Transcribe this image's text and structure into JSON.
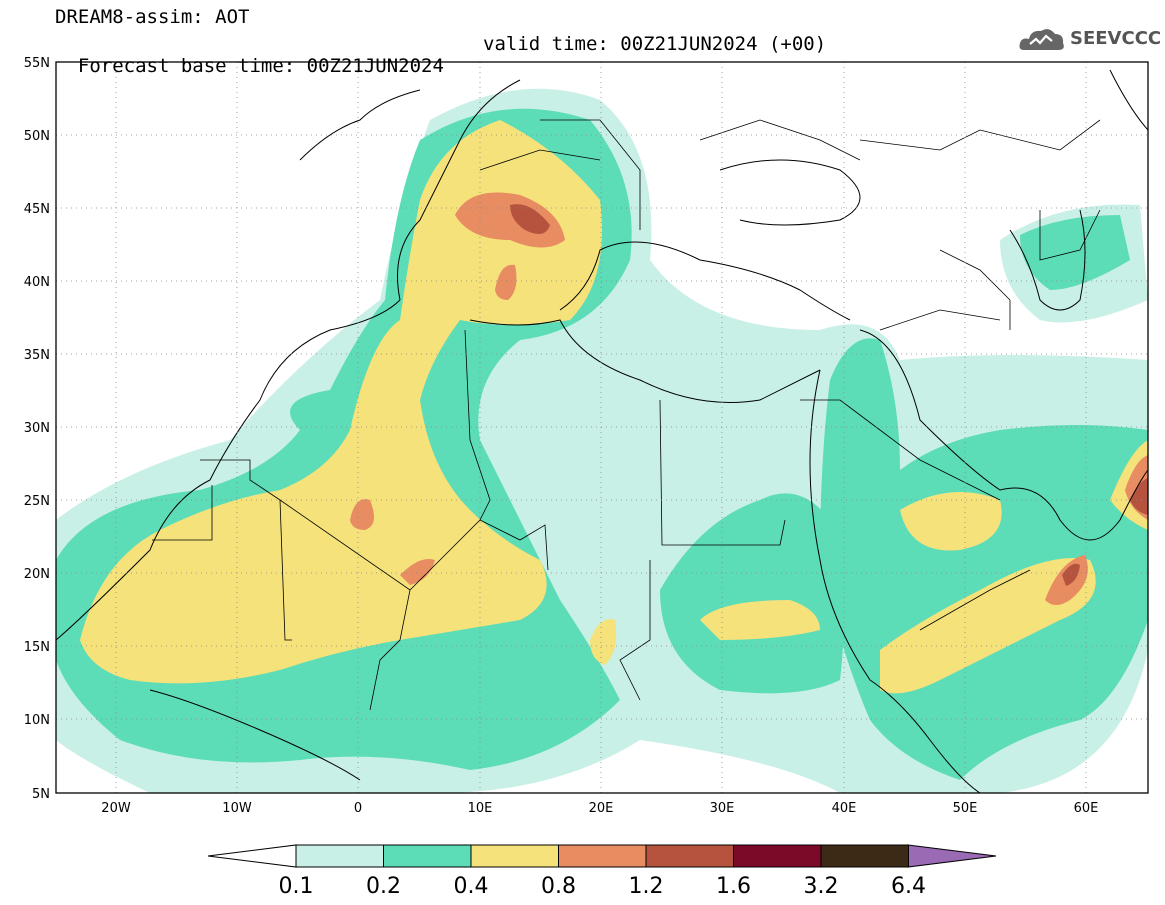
{
  "header": {
    "title": "DREAM8-assim: AOT",
    "base_time": "Forecast base time: 00Z21JUN2024",
    "valid_time": "valid time: 00Z21JUN2024 (+00)"
  },
  "logo": {
    "text": "SEEVCCC",
    "icon": "cloud-logo-icon",
    "color": "#555555"
  },
  "map": {
    "lat_ticks": [
      "55N",
      "50N",
      "45N",
      "40N",
      "35N",
      "30N",
      "25N",
      "20N",
      "15N",
      "10N",
      "5N"
    ],
    "lon_ticks": [
      "20W",
      "10W",
      "0",
      "10E",
      "20E",
      "30E",
      "40E",
      "50E",
      "60E"
    ],
    "lon_range": [
      -25,
      65
    ],
    "lat_range": [
      5,
      55
    ],
    "grid": true
  },
  "colorbar": {
    "labels": [
      "0.1",
      "0.2",
      "0.4",
      "0.8",
      "1.2",
      "1.6",
      "3.2",
      "6.4"
    ],
    "colors": [
      "#c8f0e6",
      "#5ddcb8",
      "#f5e27a",
      "#e88c62",
      "#b5533e",
      "#7a0a28",
      "#3d2a16"
    ],
    "under_color": "#ffffff",
    "over_color": "#9a6ab5"
  }
}
